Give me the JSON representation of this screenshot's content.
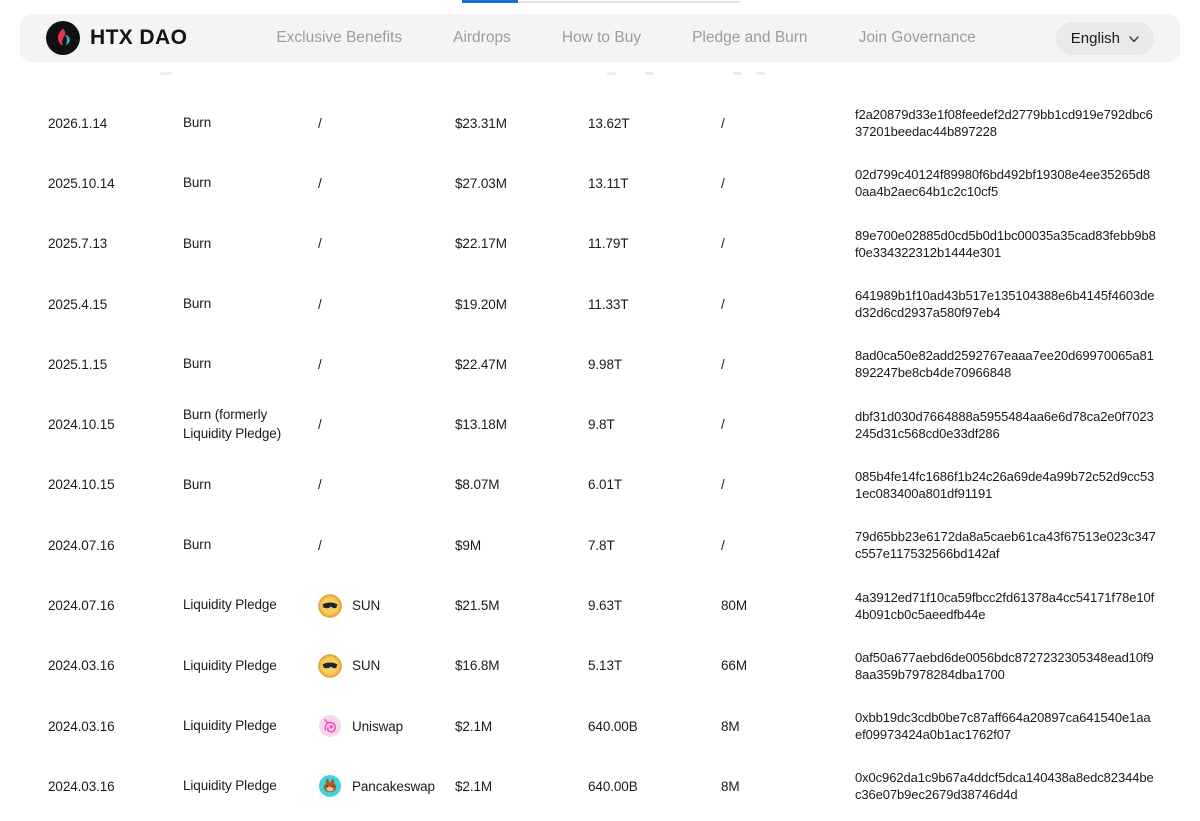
{
  "top_indicator": {
    "note": "partial carousel indicator at top edge"
  },
  "navbar": {
    "brand": "HTX DAO",
    "items": [
      {
        "label": "Exclusive Benefits"
      },
      {
        "label": "Airdrops"
      },
      {
        "label": "How to Buy"
      },
      {
        "label": "Pledge and Burn"
      },
      {
        "label": "Join Governance"
      }
    ],
    "language": {
      "label": "English",
      "icon": "chevron-down-icon"
    }
  },
  "table": {
    "rows": [
      {
        "date": "2026.1.14",
        "type": "Burn",
        "platform": {
          "label": "/",
          "icon": null
        },
        "amount": "$23.31M",
        "quantity": "13.62T",
        "pledged": "/",
        "tx_hash": "f2a20879d33e1f08feedef2d2779bb1cd919e792dbc637201beedac44b897228"
      },
      {
        "date": "2025.10.14",
        "type": "Burn",
        "platform": {
          "label": "/",
          "icon": null
        },
        "amount": "$27.03M",
        "quantity": "13.11T",
        "pledged": "/",
        "tx_hash": "02d799c40124f89980f6bd492bf19308e4ee35265d80aa4b2aec64b1c2c10cf5"
      },
      {
        "date": "2025.7.13",
        "type": "Burn",
        "platform": {
          "label": "/",
          "icon": null
        },
        "amount": "$22.17M",
        "quantity": "11.79T",
        "pledged": "/",
        "tx_hash": "89e700e02885d0cd5b0d1bc00035a35cad83febb9b8f0e334322312b1444e301"
      },
      {
        "date": "2025.4.15",
        "type": "Burn",
        "platform": {
          "label": "/",
          "icon": null
        },
        "amount": "$19.20M",
        "quantity": "11.33T",
        "pledged": "/",
        "tx_hash": "641989b1f10ad43b517e135104388e6b4145f4603ded32d6cd2937a580f97eb4"
      },
      {
        "date": "2025.1.15",
        "type": "Burn",
        "platform": {
          "label": "/",
          "icon": null
        },
        "amount": "$22.47M",
        "quantity": "9.98T",
        "pledged": "/",
        "tx_hash": "8ad0ca50e82add2592767eaaa7ee20d69970065a81892247be8cb4de70966848"
      },
      {
        "date": "2024.10.15",
        "type": "Burn (formerly Liquidity Pledge)",
        "platform": {
          "label": "/",
          "icon": null
        },
        "amount": "$13.18M",
        "quantity": "9.8T",
        "pledged": "/",
        "tx_hash": "dbf31d030d7664888a5955484aa6e6d78ca2e0f7023245d31c568cd0e33df286"
      },
      {
        "date": "2024.10.15",
        "type": "Burn",
        "platform": {
          "label": "/",
          "icon": null
        },
        "amount": "$8.07M",
        "quantity": "6.01T",
        "pledged": "/",
        "tx_hash": "085b4fe14fc1686f1b24c26a69de4a99b72c52d9cc531ec083400a801df91191"
      },
      {
        "date": "2024.07.16",
        "type": "Burn",
        "platform": {
          "label": "/",
          "icon": null
        },
        "amount": "$9M",
        "quantity": "7.8T",
        "pledged": "/",
        "tx_hash": "79d65bb23e6172da8a5caeb61ca43f67513e023c347c557e117532566bd142af"
      },
      {
        "date": "2024.07.16",
        "type": "Liquidity Pledge",
        "platform": {
          "label": "SUN",
          "icon": "sun-icon"
        },
        "amount": "$21.5M",
        "quantity": "9.63T",
        "pledged": "80M",
        "tx_hash": "4a3912ed71f10ca59fbcc2fd61378a4cc54171f78e10f4b091cb0c5aeedfb44e"
      },
      {
        "date": "2024.03.16",
        "type": "Liquidity Pledge",
        "platform": {
          "label": "SUN",
          "icon": "sun-icon"
        },
        "amount": "$16.8M",
        "quantity": "5.13T",
        "pledged": "66M",
        "tx_hash": "0af50a677aebd6de0056bdc8727232305348ead10f98aa359b7978284dba1700"
      },
      {
        "date": "2024.03.16",
        "type": "Liquidity Pledge",
        "platform": {
          "label": "Uniswap",
          "icon": "uniswap-icon"
        },
        "amount": "$2.1M",
        "quantity": "640.00B",
        "pledged": "8M",
        "tx_hash": "0xbb19dc3cdb0be7c87aff664a20897ca641540e1aaef09973424a0b1ac1762f07"
      },
      {
        "date": "2024.03.16",
        "type": "Liquidity Pledge",
        "platform": {
          "label": "Pancakeswap",
          "icon": "pancakeswap-icon"
        },
        "amount": "$2.1M",
        "quantity": "640.00B",
        "pledged": "8M",
        "tx_hash": "0x0c962da1c9b67a4ddcf5dca140438a8edc82344bec36e07b9ec2679d38746d4d"
      }
    ]
  },
  "colors": {
    "top_indicator_blue": "#1a6fd4",
    "navbar_bg": "#f4f4f4",
    "nav_text": "#9c9c9c",
    "lang_pill_bg": "#eae8e9",
    "text": "#1a1a1a",
    "brand_flame_red": "#e8354f",
    "brand_flame_blue": "#3bb3e6",
    "sun_gold": "#f5bc45",
    "uniswap_pink_bg": "#f8d7ec",
    "uniswap_pink": "#ff47c0",
    "pancakeswap_teal": "#42d1e1",
    "pancakeswap_bunny_brown": "#a35f23"
  }
}
